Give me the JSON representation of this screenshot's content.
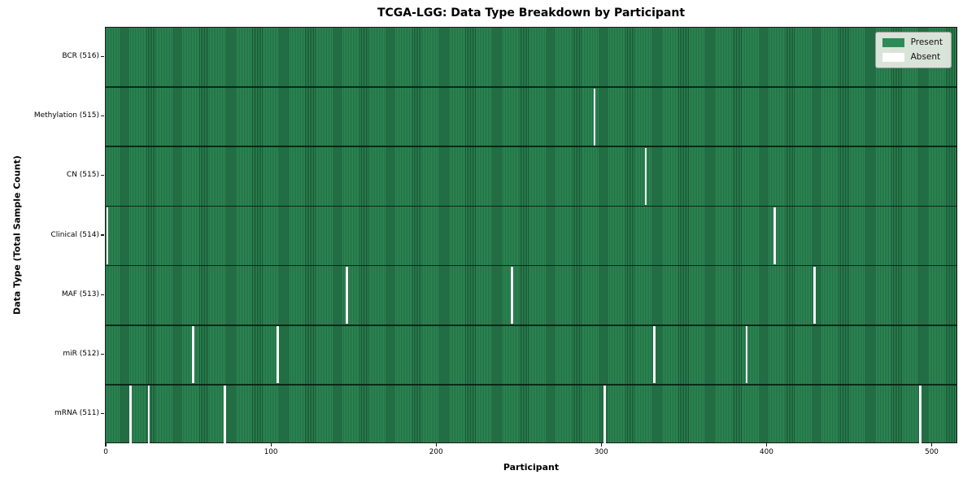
{
  "chart_data": {
    "type": "heatmap",
    "title": "TCGA-LGG: Data Type Breakdown by Participant",
    "xlabel": "Participant",
    "ylabel": "Data Type (Total Sample Count)",
    "x_ticks": [
      0,
      100,
      200,
      300,
      400,
      500
    ],
    "x_range": [
      -0.5,
      515.5
    ],
    "n_participants": 516,
    "grid": false,
    "legend_position": "upper right",
    "legend": [
      {
        "label": "Present",
        "color": "#2e8b57"
      },
      {
        "label": "Absent",
        "color": "#ffffff"
      }
    ],
    "colors": {
      "present_fill": "#2e8b57",
      "present_stripe_dark": "#164f2f",
      "absent_fill": "#ffffff",
      "row_divider": "#0a1e11",
      "spine": "#1a1a1a",
      "legend_background": "#f2f2ed"
    },
    "rows": [
      {
        "label": "BCR (516)",
        "data_type": "BCR",
        "present_count": 516,
        "absent_participants": []
      },
      {
        "label": "Methylation (515)",
        "data_type": "Methylation",
        "present_count": 515,
        "absent_participants": [
          295
        ]
      },
      {
        "label": "CN (515)",
        "data_type": "CN",
        "present_count": 515,
        "absent_participants": [
          326
        ]
      },
      {
        "label": "Clinical (514)",
        "data_type": "Clinical",
        "present_count": 514,
        "absent_participants": [
          0,
          404
        ]
      },
      {
        "label": "MAF (513)",
        "data_type": "MAF",
        "present_count": 513,
        "absent_participants": [
          145,
          245,
          428
        ]
      },
      {
        "label": "miR (512)",
        "data_type": "miR",
        "present_count": 512,
        "absent_participants": [
          52,
          103,
          331,
          387
        ]
      },
      {
        "label": "mRNA (511)",
        "data_type": "mRNA",
        "present_count": 511,
        "absent_participants": [
          14,
          25,
          71,
          301,
          492
        ]
      }
    ]
  }
}
